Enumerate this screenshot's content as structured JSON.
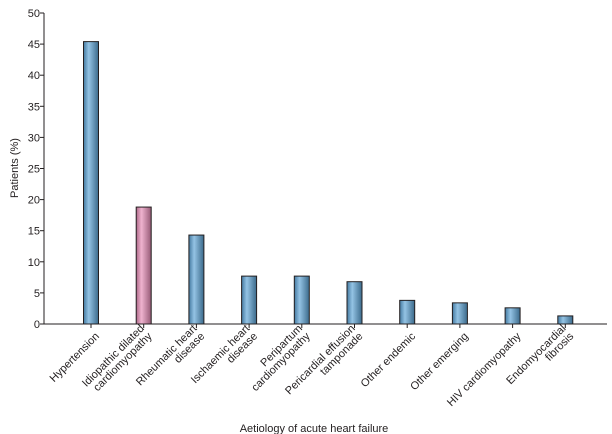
{
  "chart_data": {
    "type": "bar",
    "xlabel": "Aetiology of acute heart failure",
    "ylabel": "Patients (%)",
    "ylim": [
      0,
      50
    ],
    "yticks": [
      0,
      5,
      10,
      15,
      20,
      25,
      30,
      35,
      40,
      45,
      50
    ],
    "grid": false,
    "categories": [
      [
        "Hypertension"
      ],
      [
        "Idiopathic dilated",
        "cardiomyopathy"
      ],
      [
        "Rheumatic heart",
        "disease"
      ],
      [
        "Ischaemic heart",
        "disease"
      ],
      [
        "Peripartum",
        "cardiomyopathy"
      ],
      [
        "Pericardial effusion",
        "tamponade"
      ],
      [
        "Other endemic"
      ],
      [
        "Other emerging"
      ],
      [
        "HIV cardiomyopathy"
      ],
      [
        "Endomyocardial",
        "fibrosis"
      ]
    ],
    "values": [
      45.4,
      18.8,
      14.3,
      7.7,
      7.7,
      6.8,
      3.8,
      3.4,
      2.6,
      1.3
    ],
    "bar_colors": [
      "#5ba3d6",
      "#e68ab5",
      "#5ba3d6",
      "#5ba3d6",
      "#5ba3d6",
      "#5ba3d6",
      "#5ba3d6",
      "#5ba3d6",
      "#5ba3d6",
      "#5ba3d6"
    ],
    "colors": {
      "bar_default": "#5ba3d6",
      "bar_highlight": "#e68ab5",
      "bar_outline": "#231f20",
      "axis": "#231f20"
    }
  }
}
